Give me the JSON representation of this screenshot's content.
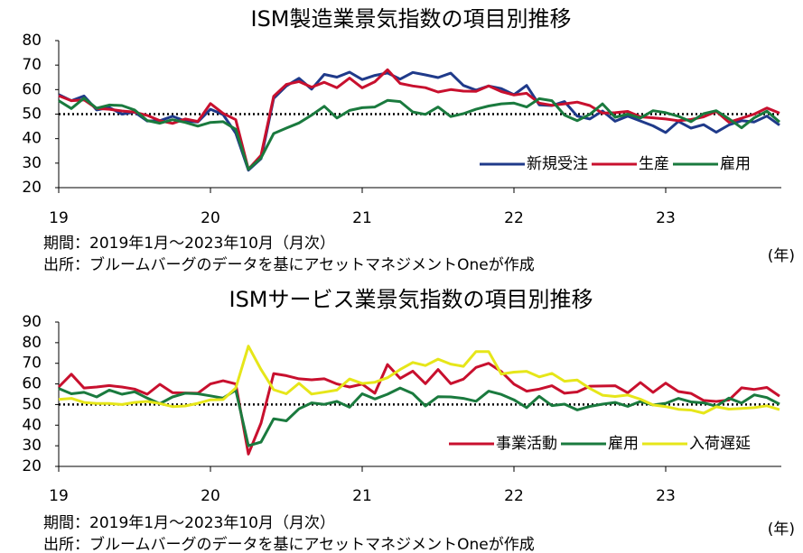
{
  "chart_data": [
    {
      "type": "line",
      "title": "ISM製造業景気指数の項目別推移",
      "categories": [
        "19",
        null,
        null,
        null,
        null,
        null,
        null,
        null,
        null,
        null,
        null,
        null,
        "20",
        null,
        null,
        null,
        null,
        null,
        null,
        null,
        null,
        null,
        null,
        null,
        "21",
        null,
        null,
        null,
        null,
        null,
        null,
        null,
        null,
        null,
        null,
        null,
        "22",
        null,
        null,
        null,
        null,
        null,
        null,
        null,
        null,
        null,
        null,
        null,
        "23",
        null,
        null,
        null,
        null,
        null,
        null,
        null,
        null,
        null
      ],
      "series": [
        {
          "name": "新規受注",
          "color": "#1f3a8a",
          "values": [
            58,
            55.5,
            57.4,
            51.7,
            52.7,
            50,
            50.8,
            47.2,
            47.3,
            49.1,
            47.2,
            46.8,
            52,
            49.8,
            42.2,
            27.1,
            31.8,
            56.4,
            61.5,
            64.6,
            60.2,
            66.2,
            65.1,
            67.1,
            64.1,
            65.8,
            66.8,
            64.3,
            67,
            66,
            64.9,
            66.7,
            61.7,
            59.8,
            61.5,
            60.4,
            57.9,
            61.7,
            53.8,
            53.5,
            55.1,
            49.2,
            48,
            51.3,
            47.1,
            49.2,
            47.2,
            45.2,
            42.5,
            47,
            44.3,
            45.7,
            42.6,
            45.6,
            47.3,
            46.8,
            49.2,
            45.5
          ]
        },
        {
          "name": "生産",
          "color": "#c8102e",
          "values": [
            57.5,
            55.5,
            55.8,
            52.3,
            52,
            51.3,
            50.8,
            49.5,
            47.3,
            46.2,
            48,
            47,
            54.3,
            50.3,
            47.7,
            27.5,
            33.2,
            57.3,
            62.1,
            63.3,
            61,
            63,
            60.8,
            64.7,
            60.7,
            63.2,
            68.1,
            62.5,
            61.5,
            60.8,
            59,
            60,
            59.4,
            59.3,
            61.5,
            59.2,
            57.8,
            58.5,
            54.5,
            53.6,
            54.2,
            54.9,
            53.5,
            50.4,
            50.6,
            51.1,
            48.9,
            48.5,
            48,
            47.3,
            47.8,
            48.9,
            51.1,
            46.7,
            48.3,
            50,
            52.5,
            50.4
          ]
        },
        {
          "name": "雇用",
          "color": "#1a7a3e",
          "values": [
            55.5,
            52.3,
            56.5,
            52.4,
            53.7,
            53.5,
            51.7,
            47.4,
            46.3,
            47.7,
            46.6,
            45.1,
            46.6,
            46.9,
            43.8,
            27.5,
            32.1,
            42.1,
            44.3,
            46.4,
            49.6,
            53.2,
            48.4,
            51.5,
            52.6,
            52.9,
            55.6,
            55.1,
            50.9,
            49.9,
            52.9,
            49,
            50.2,
            52,
            53.3,
            54.2,
            54.5,
            52.9,
            56.3,
            55.5,
            49.6,
            47.3,
            49.9,
            54.2,
            48.7,
            50,
            48.4,
            51.4,
            50.6,
            49.1,
            46.9,
            50.2,
            51.4,
            48.1,
            44.4,
            48.5,
            51.2,
            46.8
          ]
        }
      ],
      "ylim": [
        20,
        80
      ],
      "yticks": [
        20,
        30,
        40,
        50,
        60,
        70,
        80
      ],
      "hline": 50,
      "legend": "lower right",
      "x_unit": "(年)",
      "notes": [
        "期間：2019年1月～2023年10月（月次）",
        "出所：ブルームバーグのデータを基にアセットマネジメントOneが作成"
      ]
    },
    {
      "type": "line",
      "title": "ISMサービス業景気指数の項目別推移",
      "categories": [
        "19",
        null,
        null,
        null,
        null,
        null,
        null,
        null,
        null,
        null,
        null,
        null,
        "20",
        null,
        null,
        null,
        null,
        null,
        null,
        null,
        null,
        null,
        null,
        null,
        "21",
        null,
        null,
        null,
        null,
        null,
        null,
        null,
        null,
        null,
        null,
        null,
        "22",
        null,
        null,
        null,
        null,
        null,
        null,
        null,
        null,
        null,
        null,
        null,
        "23",
        null,
        null,
        null,
        null,
        null,
        null,
        null,
        null,
        null
      ],
      "series": [
        {
          "name": "事業活動",
          "color": "#c8102e",
          "values": [
            58.5,
            64.7,
            58,
            58.5,
            59.2,
            58.5,
            57.5,
            55,
            59.8,
            55.8,
            55.6,
            55.5,
            60,
            61.5,
            60,
            26,
            41,
            65,
            64,
            62.5,
            62,
            62.5,
            60,
            58.5,
            59.9,
            55.5,
            69.4,
            62.7,
            66.2,
            60.1,
            67,
            60.1,
            62.3,
            68,
            70,
            66,
            59.9,
            56.5,
            57.5,
            59.1,
            55.5,
            56.1,
            58.9,
            59,
            59.1,
            55.7,
            60.7,
            55.9,
            60.4,
            56.3,
            55.4,
            52,
            51.5,
            52.2,
            58.1,
            57.3,
            58.3,
            54.1
          ]
        },
        {
          "name": "雇用",
          "color": "#1a7a3e",
          "values": [
            57.8,
            55.2,
            55.9,
            53.7,
            57,
            55,
            56.2,
            53.1,
            50.4,
            53.7,
            55.5,
            55.2,
            54.2,
            53.1,
            57,
            30,
            31.8,
            43.1,
            42.1,
            47.9,
            50.8,
            50.1,
            51.5,
            48.7,
            55.2,
            52.7,
            55,
            58,
            55.3,
            49.3,
            53.8,
            53.7,
            53,
            51.6,
            56.5,
            54.9,
            52.3,
            48.5,
            54,
            49.5,
            50.2,
            47.4,
            49.1,
            50.2,
            51,
            49.1,
            51.5,
            49.8,
            50.6,
            53,
            51.3,
            50.8,
            49.2,
            53.1,
            50.7,
            54.7,
            53.4,
            50.2
          ]
        },
        {
          "name": "入荷遅延",
          "color": "#e6e619",
          "values": [
            52.5,
            53,
            51,
            50.5,
            50.5,
            50,
            51,
            51.5,
            50.5,
            49,
            49.3,
            50.6,
            52.3,
            52.4,
            58,
            78.3,
            67,
            57.2,
            55.2,
            60.3,
            55.1,
            56,
            57,
            62.4,
            60.2,
            60.8,
            63,
            67,
            70.4,
            68.9,
            72,
            69.6,
            68.5,
            75.7,
            75.7,
            64.8,
            65.7,
            66.1,
            63.4,
            65.1,
            61.3,
            61.9,
            57.8,
            54.5,
            53.9,
            54.6,
            52.6,
            49.8,
            49,
            47.7,
            47.3,
            45.8,
            48.9,
            47.8,
            48.1,
            48.5,
            49.4,
            47.5
          ]
        }
      ],
      "ylim": [
        20,
        90
      ],
      "yticks": [
        20,
        30,
        40,
        50,
        60,
        70,
        80,
        90
      ],
      "hline": 50,
      "legend": "lower right",
      "x_unit": "(年)",
      "notes": [
        "期間：2019年1月～2023年10月（月次）",
        "出所：ブルームバーグのデータを基にアセットマネジメントOneが作成"
      ]
    }
  ]
}
